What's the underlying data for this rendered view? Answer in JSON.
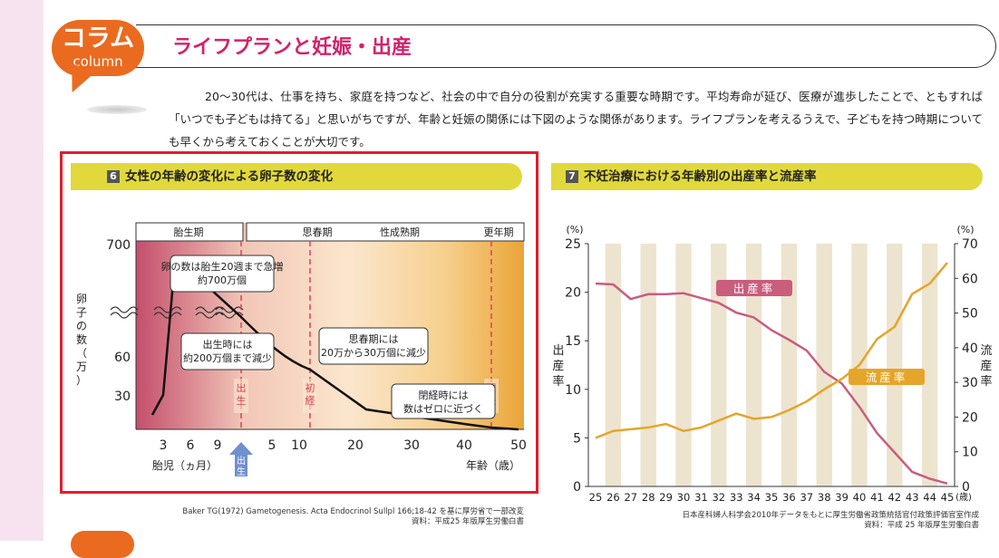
{
  "header": {
    "badge_main": "コラム",
    "badge_sub": "column",
    "title": "ライフプランと妊娠・出産"
  },
  "intro_text": "20～30代は、仕事を持ち、家庭を持つなど、社会の中で自分の役割が充実する重要な時期です。平均寿命が延び、医療が進歩したことで、ともすれば「いつでも子どもは持てる」と思いがちですが、年齢と妊娠の関係には下図のような関係があります。ライフプランを考えるうえで、子どもを持つ時期についても早くから考えておくことが大切です。",
  "colors": {
    "accent_orange": "#ea6a20",
    "title_pink": "#d3226b",
    "frame_red": "#e21d2b",
    "panel_title_bg": "#e1d93b",
    "birth_rate_line": "#c95d7e",
    "miscarriage_line": "#e5a52a",
    "stripe": "#ede4cf"
  },
  "chart_data": [
    {
      "type": "line",
      "panel_number": "6",
      "title": "女性の年齢の変化による卵子数の変化",
      "ylabel": "卵子の数（万）",
      "xlabel_left": "胎児（ヵ月）",
      "xlabel_right": "年齢（歳）",
      "y_ticks": [
        "700",
        "60",
        "30"
      ],
      "x_ticks_fetal": [
        "3",
        "6",
        "9"
      ],
      "x_ticks_age": [
        "5",
        "10",
        "20",
        "30",
        "40",
        "50"
      ],
      "birth_marker": "出生",
      "stages": [
        "胎生期",
        "思春期",
        "性成熟期",
        "更年期"
      ],
      "vertical_markers": [
        "出生",
        "初経",
        "閉経"
      ],
      "annotations": [
        "卵の数は胎生20週まで急増\n約700万個",
        "出生時には\n約200万個まで減少",
        "思春期には\n20万から30万個に減少",
        "閉経時には\n数はゼロに近づく"
      ],
      "series": [
        {
          "points": [
            {
              "x": "2.5ヵ月",
              "y": 20
            },
            {
              "x": "3.5ヵ月",
              "y": 30
            },
            {
              "x": "5ヵ月",
              "y": 700
            },
            {
              "x": "9ヵ月",
              "y": 200
            },
            {
              "x": "12歳",
              "y": 25
            },
            {
              "x": "20歳",
              "y": 20
            },
            {
              "x": "30歳",
              "y": 15
            },
            {
              "x": "40歳",
              "y": 10
            },
            {
              "x": "50歳",
              "y": 0
            }
          ]
        }
      ]
    },
    {
      "type": "line",
      "panel_number": "7",
      "title": "不妊治療における年齢別の出産率と流産率",
      "y_unit_left": "(%)",
      "y_unit_right": "(%)",
      "ylabel_left": "出産率",
      "ylabel_right": "流産率",
      "x_unit": "(歳)",
      "ylim_left": [
        0,
        25
      ],
      "ylim_right": [
        0,
        70
      ],
      "y_ticks_left": [
        0,
        5,
        10,
        15,
        20,
        25
      ],
      "y_ticks_right": [
        0,
        10,
        20,
        30,
        40,
        50,
        60,
        70
      ],
      "categories": [
        25,
        26,
        27,
        28,
        29,
        30,
        31,
        32,
        33,
        34,
        35,
        36,
        37,
        38,
        39,
        40,
        41,
        42,
        43,
        44,
        45
      ],
      "series": [
        {
          "name": "出産率",
          "axis": "left",
          "values": [
            20.9,
            20.8,
            19.3,
            19.8,
            19.8,
            19.9,
            19.4,
            18.9,
            17.9,
            17.4,
            16.1,
            15.1,
            14.0,
            11.8,
            10.6,
            8.2,
            5.5,
            3.5,
            1.5,
            0.8,
            0.3
          ]
        },
        {
          "name": "流産率",
          "axis": "right",
          "values": [
            14.0,
            16.0,
            16.5,
            17.0,
            18.0,
            16.0,
            17.0,
            19.0,
            21.0,
            19.5,
            20.0,
            22.0,
            24.5,
            28.0,
            31.0,
            35.0,
            42.5,
            46.0,
            55.5,
            58.5,
            64.5
          ]
        }
      ],
      "grid": false,
      "source_note": "日本産科婦人科学会2010年データをもとに厚生労働省政策統括官付政策評価官室作成\n資料：平成 25 年版厚生労働白書"
    }
  ],
  "source_left": "Baker TG(1972) Gametogenesis. Acta Endocrinol Sullpl 166;18-42 を基に厚労省で一部改変\n資料：平成25 年版厚生労働白書"
}
